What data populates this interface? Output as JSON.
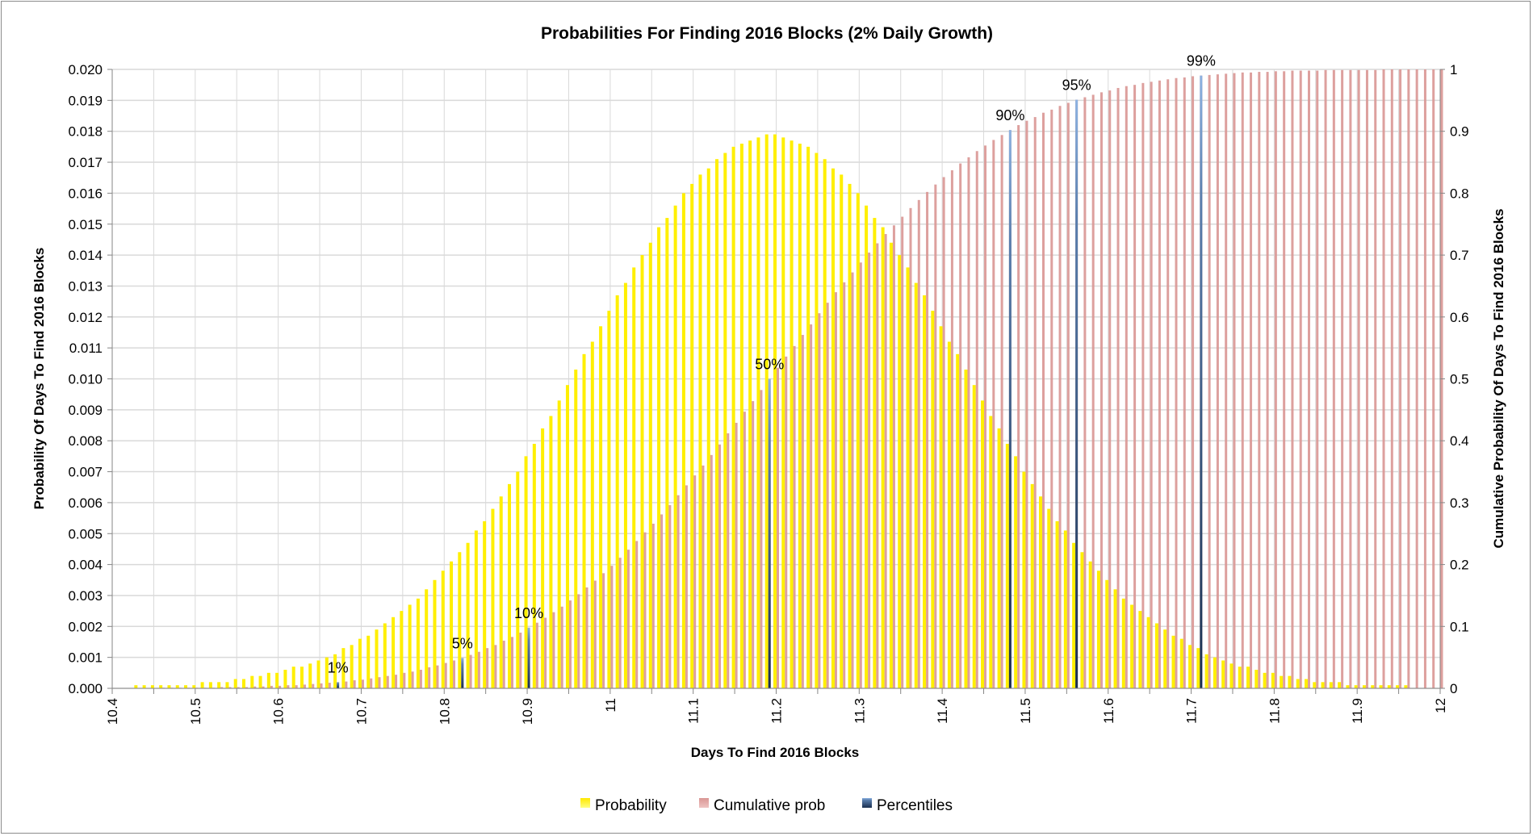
{
  "chart_data": {
    "type": "bar",
    "title": "Probabilities For Finding 2016 Blocks (2% Daily Growth)",
    "xlabel": "Days To Find 2016 Blocks",
    "ylabel": "Probability Of Days To Find 2016 Blocks",
    "ylabel_right": "Cumulative Probability Of Days To Find 2016 Blocks",
    "xlim": [
      10.4,
      12.0
    ],
    "ylim": [
      0,
      0.02
    ],
    "ylim_right": [
      0,
      1
    ],
    "grid": true,
    "legend_position": "bottom",
    "x_tick_labels": [
      "10.4",
      "10.5",
      "10.6",
      "10.7",
      "10.8",
      "10.9",
      "11",
      "11.1",
      "11.2",
      "11.3",
      "11.4",
      "11.5",
      "11.6",
      "11.7",
      "11.8",
      "11.9",
      "12"
    ],
    "y_tick_labels": [
      "0.000",
      "0.001",
      "0.002",
      "0.003",
      "0.004",
      "0.005",
      "0.006",
      "0.007",
      "0.008",
      "0.009",
      "0.010",
      "0.011",
      "0.012",
      "0.013",
      "0.014",
      "0.015",
      "0.016",
      "0.017",
      "0.018",
      "0.019",
      "0.020"
    ],
    "y_right_tick_labels": [
      "0",
      "0.1",
      "0.2",
      "0.3",
      "0.4",
      "0.5",
      "0.6",
      "0.7",
      "0.8",
      "0.9",
      "1"
    ],
    "x": [
      10.4,
      10.41,
      10.42,
      10.43,
      10.44,
      10.45,
      10.46,
      10.47,
      10.48,
      10.49,
      10.5,
      10.51,
      10.52,
      10.53,
      10.54,
      10.55,
      10.56,
      10.57,
      10.58,
      10.59,
      10.6,
      10.61,
      10.62,
      10.63,
      10.64,
      10.65,
      10.66,
      10.67,
      10.68,
      10.69,
      10.7,
      10.71,
      10.72,
      10.73,
      10.74,
      10.75,
      10.76,
      10.77,
      10.78,
      10.79,
      10.8,
      10.81,
      10.82,
      10.83,
      10.84,
      10.85,
      10.86,
      10.87,
      10.88,
      10.89,
      10.9,
      10.91,
      10.92,
      10.93,
      10.94,
      10.95,
      10.96,
      10.97,
      10.98,
      10.99,
      11.0,
      11.01,
      11.02,
      11.03,
      11.04,
      11.05,
      11.06,
      11.07,
      11.08,
      11.09,
      11.1,
      11.11,
      11.12,
      11.13,
      11.14,
      11.15,
      11.16,
      11.17,
      11.18,
      11.19,
      11.2,
      11.21,
      11.22,
      11.23,
      11.24,
      11.25,
      11.26,
      11.27,
      11.28,
      11.29,
      11.3,
      11.31,
      11.32,
      11.33,
      11.34,
      11.35,
      11.36,
      11.37,
      11.38,
      11.39,
      11.4,
      11.41,
      11.42,
      11.43,
      11.44,
      11.45,
      11.46,
      11.47,
      11.48,
      11.49,
      11.5,
      11.51,
      11.52,
      11.53,
      11.54,
      11.55,
      11.56,
      11.57,
      11.58,
      11.59,
      11.6,
      11.61,
      11.62,
      11.63,
      11.64,
      11.65,
      11.66,
      11.67,
      11.68,
      11.69,
      11.7,
      11.71,
      11.72,
      11.73,
      11.74,
      11.75,
      11.76,
      11.77,
      11.78,
      11.79,
      11.8,
      11.81,
      11.82,
      11.83,
      11.84,
      11.85,
      11.86,
      11.87,
      11.88,
      11.89,
      11.9,
      11.91,
      11.92,
      11.93,
      11.94,
      11.95,
      11.96,
      11.97,
      11.98,
      11.99,
      12.0
    ],
    "series": [
      {
        "name": "Probability",
        "axis": "left",
        "color": "#ffef00",
        "values": [
          0,
          0,
          0,
          0.0001,
          0.0001,
          0.0001,
          0.0001,
          0.0001,
          0.0001,
          0.0001,
          0.0001,
          0.0002,
          0.0002,
          0.0002,
          0.0002,
          0.0003,
          0.0003,
          0.0004,
          0.0004,
          0.0005,
          0.0005,
          0.0006,
          0.0007,
          0.0007,
          0.0008,
          0.0009,
          0.001,
          0.0011,
          0.0013,
          0.0014,
          0.0016,
          0.0017,
          0.0019,
          0.0021,
          0.0023,
          0.0025,
          0.0027,
          0.0029,
          0.0032,
          0.0035,
          0.0038,
          0.0041,
          0.0044,
          0.0047,
          0.0051,
          0.0054,
          0.0058,
          0.0062,
          0.0066,
          0.007,
          0.0075,
          0.0079,
          0.0084,
          0.0088,
          0.0093,
          0.0098,
          0.0103,
          0.0108,
          0.0112,
          0.0117,
          0.0122,
          0.0127,
          0.0131,
          0.0136,
          0.014,
          0.0144,
          0.0149,
          0.0152,
          0.0156,
          0.016,
          0.0163,
          0.0166,
          0.0168,
          0.0171,
          0.0173,
          0.0175,
          0.0176,
          0.0177,
          0.0178,
          0.0179,
          0.0179,
          0.0178,
          0.0177,
          0.0176,
          0.0175,
          0.0173,
          0.0171,
          0.0168,
          0.0166,
          0.0163,
          0.016,
          0.0156,
          0.0152,
          0.0149,
          0.0144,
          0.014,
          0.0136,
          0.0131,
          0.0127,
          0.0122,
          0.0117,
          0.0112,
          0.0108,
          0.0103,
          0.0098,
          0.0093,
          0.0088,
          0.0084,
          0.0079,
          0.0075,
          0.007,
          0.0066,
          0.0062,
          0.0058,
          0.0054,
          0.0051,
          0.0047,
          0.0044,
          0.0041,
          0.0038,
          0.0035,
          0.0032,
          0.0029,
          0.0027,
          0.0025,
          0.0023,
          0.0021,
          0.0019,
          0.0017,
          0.0016,
          0.0014,
          0.0013,
          0.0011,
          0.001,
          0.0009,
          0.0008,
          0.0007,
          0.0007,
          0.0006,
          0.0005,
          0.0005,
          0.0004,
          0.0004,
          0.0003,
          0.0003,
          0.0002,
          0.0002,
          0.0002,
          0.0002,
          0.0001,
          0.0001,
          0.0001,
          0.0001,
          0.0001,
          0.0001,
          0.0001,
          0.0001,
          0,
          0,
          0,
          0
        ]
      },
      {
        "name": "Cumulative prob",
        "axis": "right",
        "color": "#d99694",
        "values": [
          0,
          0,
          0,
          0,
          0,
          0,
          0.001,
          0.001,
          0.001,
          0.001,
          0.001,
          0.001,
          0.001,
          0.002,
          0.002,
          0.002,
          0.002,
          0.003,
          0.003,
          0.004,
          0.004,
          0.005,
          0.005,
          0.006,
          0.007,
          0.008,
          0.009,
          0.01,
          0.011,
          0.013,
          0.014,
          0.016,
          0.018,
          0.02,
          0.022,
          0.025,
          0.027,
          0.03,
          0.034,
          0.037,
          0.041,
          0.045,
          0.049,
          0.054,
          0.059,
          0.065,
          0.07,
          0.077,
          0.083,
          0.09,
          0.098,
          0.106,
          0.114,
          0.123,
          0.132,
          0.142,
          0.152,
          0.163,
          0.174,
          0.186,
          0.198,
          0.211,
          0.224,
          0.238,
          0.252,
          0.266,
          0.281,
          0.296,
          0.312,
          0.328,
          0.344,
          0.36,
          0.377,
          0.394,
          0.412,
          0.429,
          0.447,
          0.464,
          0.482,
          0.5,
          0.518,
          0.536,
          0.553,
          0.571,
          0.588,
          0.606,
          0.623,
          0.64,
          0.656,
          0.672,
          0.688,
          0.704,
          0.719,
          0.734,
          0.748,
          0.762,
          0.776,
          0.789,
          0.802,
          0.814,
          0.826,
          0.837,
          0.848,
          0.858,
          0.868,
          0.877,
          0.886,
          0.894,
          0.902,
          0.91,
          0.917,
          0.923,
          0.93,
          0.935,
          0.941,
          0.946,
          0.951,
          0.955,
          0.959,
          0.963,
          0.966,
          0.97,
          0.973,
          0.975,
          0.978,
          0.98,
          0.982,
          0.984,
          0.986,
          0.987,
          0.989,
          0.99,
          0.991,
          0.992,
          0.993,
          0.994,
          0.995,
          0.995,
          0.996,
          0.996,
          0.997,
          0.997,
          0.998,
          0.998,
          0.998,
          0.998,
          0.999,
          0.999,
          0.999,
          0.999,
          0.999,
          0.999,
          0.999,
          1.0,
          1.0,
          1.0,
          1.0,
          1.0,
          1.0,
          1.0,
          1.0
        ]
      },
      {
        "name": "Percentiles",
        "axis": "right",
        "color": "#1f3864",
        "points": [
          {
            "label": "1%",
            "x": 10.67,
            "value": 0.01
          },
          {
            "label": "5%",
            "x": 10.82,
            "value": 0.049
          },
          {
            "label": "10%",
            "x": 10.9,
            "value": 0.098
          },
          {
            "label": "50%",
            "x": 11.19,
            "value": 0.5
          },
          {
            "label": "90%",
            "x": 11.48,
            "value": 0.902
          },
          {
            "label": "95%",
            "x": 11.56,
            "value": 0.951
          },
          {
            "label": "99%",
            "x": 11.71,
            "value": 0.99
          }
        ]
      }
    ]
  }
}
